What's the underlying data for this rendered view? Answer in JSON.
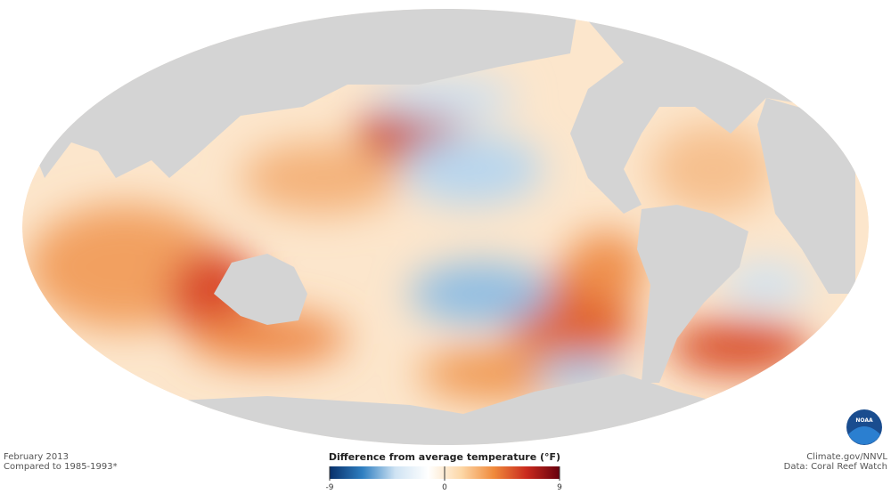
{
  "map": {
    "caption": {
      "date": "February 2013",
      "baseline": "Compared to 1985-1993*"
    },
    "legend": {
      "title": "Difference from average temperature (°F)",
      "range": [
        -9,
        9
      ],
      "ticks": [
        -9,
        0,
        9
      ],
      "colors": [
        "#08306b",
        "#2f7fc1",
        "#cfe3f3",
        "#ffffff",
        "#fdd8a8",
        "#f08a3c",
        "#c92a1e",
        "#67000d"
      ]
    },
    "credits": {
      "source": "Climate.gov/NNVL",
      "data": "Data: Coral Reef Watch"
    },
    "logo": "NOAA"
  }
}
